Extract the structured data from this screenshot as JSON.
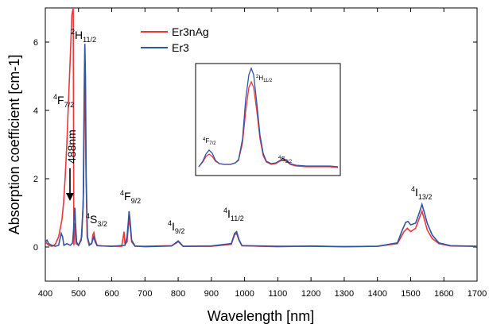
{
  "chart_data": {
    "type": "line",
    "xlabel": "Wavelength [nm]",
    "ylabel": "Absorption coefficient [cm-1]",
    "xlim": [
      400,
      1700
    ],
    "ylim": [
      -1,
      7
    ],
    "xticks": [
      400,
      500,
      600,
      700,
      800,
      900,
      1000,
      1100,
      1200,
      1300,
      1400,
      1500,
      1600,
      1700
    ],
    "yticks": [
      0,
      2,
      4,
      6
    ],
    "legend_position": "top-center",
    "series": [
      {
        "name": "Er3nAg",
        "color": "#e8383d",
        "points": [
          [
            400,
            0.15
          ],
          [
            405,
            0.1
          ],
          [
            410,
            0.05
          ],
          [
            420,
            0.02
          ],
          [
            430,
            0.08
          ],
          [
            440,
            0.3
          ],
          [
            450,
            0.8
          ],
          [
            455,
            1.3
          ],
          [
            460,
            2.1
          ],
          [
            465,
            3.1
          ],
          [
            470,
            4.3
          ],
          [
            475,
            5.5
          ],
          [
            480,
            6.8
          ],
          [
            484,
            7.0
          ],
          [
            486,
            0.05
          ],
          [
            488,
            0.7
          ],
          [
            490,
            0.55
          ],
          [
            492,
            0.1
          ],
          [
            500,
            0.05
          ],
          [
            510,
            0.3
          ],
          [
            515,
            1.6
          ],
          [
            518,
            4.4
          ],
          [
            520,
            5.2
          ],
          [
            522,
            2.4
          ],
          [
            526,
            0.3
          ],
          [
            532,
            0.05
          ],
          [
            540,
            0.1
          ],
          [
            543,
            0.35
          ],
          [
            546,
            0.42
          ],
          [
            550,
            0.22
          ],
          [
            556,
            0.05
          ],
          [
            570,
            0.03
          ],
          [
            600,
            0.02
          ],
          [
            630,
            0.02
          ],
          [
            637,
            0.45
          ],
          [
            640,
            0.08
          ],
          [
            646,
            0.15
          ],
          [
            650,
            0.6
          ],
          [
            653,
            0.85
          ],
          [
            656,
            0.55
          ],
          [
            660,
            0.15
          ],
          [
            670,
            0.02
          ],
          [
            700,
            0.02
          ],
          [
            740,
            0.03
          ],
          [
            780,
            0.04
          ],
          [
            795,
            0.12
          ],
          [
            800,
            0.16
          ],
          [
            806,
            0.1
          ],
          [
            815,
            0.02
          ],
          [
            900,
            0.02
          ],
          [
            960,
            0.08
          ],
          [
            970,
            0.36
          ],
          [
            976,
            0.4
          ],
          [
            983,
            0.2
          ],
          [
            992,
            0.04
          ],
          [
            1050,
            0.02
          ],
          [
            1100,
            0.01
          ],
          [
            1200,
            0.03
          ],
          [
            1300,
            0.01
          ],
          [
            1400,
            0.02
          ],
          [
            1460,
            0.1
          ],
          [
            1480,
            0.45
          ],
          [
            1490,
            0.55
          ],
          [
            1500,
            0.45
          ],
          [
            1515,
            0.55
          ],
          [
            1528,
            0.9
          ],
          [
            1534,
            1.05
          ],
          [
            1540,
            0.85
          ],
          [
            1550,
            0.5
          ],
          [
            1565,
            0.25
          ],
          [
            1585,
            0.1
          ],
          [
            1620,
            0.03
          ],
          [
            1700,
            0.02
          ]
        ]
      },
      {
        "name": "Er3",
        "color": "#2f55a4",
        "points": [
          [
            400,
            0.15
          ],
          [
            405,
            0.2
          ],
          [
            410,
            0.1
          ],
          [
            420,
            0.05
          ],
          [
            430,
            0.02
          ],
          [
            440,
            0.05
          ],
          [
            448,
            0.4
          ],
          [
            452,
            0.3
          ],
          [
            456,
            0.05
          ],
          [
            465,
            0.1
          ],
          [
            475,
            0.05
          ],
          [
            482,
            0.12
          ],
          [
            485,
            0.5
          ],
          [
            487,
            0.9
          ],
          [
            489,
            1.15
          ],
          [
            491,
            0.7
          ],
          [
            494,
            0.15
          ],
          [
            500,
            0.05
          ],
          [
            508,
            0.2
          ],
          [
            514,
            1.2
          ],
          [
            517,
            4.6
          ],
          [
            519,
            5.95
          ],
          [
            521,
            5.0
          ],
          [
            523,
            2.0
          ],
          [
            527,
            0.3
          ],
          [
            533,
            0.06
          ],
          [
            540,
            0.12
          ],
          [
            546,
            0.3
          ],
          [
            550,
            0.15
          ],
          [
            556,
            0.04
          ],
          [
            600,
            0.02
          ],
          [
            640,
            0.05
          ],
          [
            646,
            0.3
          ],
          [
            650,
            0.75
          ],
          [
            652,
            1.05
          ],
          [
            655,
            0.8
          ],
          [
            660,
            0.2
          ],
          [
            670,
            0.03
          ],
          [
            700,
            0.01
          ],
          [
            780,
            0.03
          ],
          [
            795,
            0.14
          ],
          [
            800,
            0.18
          ],
          [
            806,
            0.12
          ],
          [
            815,
            0.02
          ],
          [
            900,
            0.03
          ],
          [
            960,
            0.1
          ],
          [
            970,
            0.4
          ],
          [
            976,
            0.45
          ],
          [
            983,
            0.22
          ],
          [
            992,
            0.04
          ],
          [
            1050,
            0.03
          ],
          [
            1100,
            0.02
          ],
          [
            1200,
            0.02
          ],
          [
            1300,
            0.01
          ],
          [
            1400,
            0.02
          ],
          [
            1460,
            0.12
          ],
          [
            1475,
            0.5
          ],
          [
            1485,
            0.72
          ],
          [
            1492,
            0.75
          ],
          [
            1500,
            0.65
          ],
          [
            1515,
            0.7
          ],
          [
            1526,
            1.0
          ],
          [
            1534,
            1.25
          ],
          [
            1540,
            1.05
          ],
          [
            1550,
            0.7
          ],
          [
            1565,
            0.35
          ],
          [
            1585,
            0.12
          ],
          [
            1620,
            0.04
          ],
          [
            1700,
            0.02
          ]
        ]
      }
    ]
  },
  "annotations": {
    "h11": {
      "sup": "2",
      "main": "H",
      "sub": "11/2"
    },
    "f72": {
      "sup": "4",
      "main": "F",
      "sub": "7/2"
    },
    "s32": {
      "sup": "4",
      "main": "S",
      "sub": "3/2"
    },
    "f92": {
      "sup": "4",
      "main": "F",
      "sub": "9/2"
    },
    "i92": {
      "sup": "4",
      "main": "I",
      "sub": "9/2"
    },
    "i112": {
      "sup": "4",
      "main": "I",
      "sub": "11/2"
    },
    "i132": {
      "sup": "4",
      "main": "I",
      "sub": "13/2"
    },
    "nm488": "488nm"
  },
  "inset": {
    "annotations": {
      "h11": {
        "sup": "2",
        "main": "H",
        "sub": "11/2"
      },
      "f72": {
        "sup": "4",
        "main": "F",
        "sub": "7/2"
      },
      "s32": {
        "sup": "4",
        "main": "S",
        "sub": "3/2"
      }
    }
  }
}
